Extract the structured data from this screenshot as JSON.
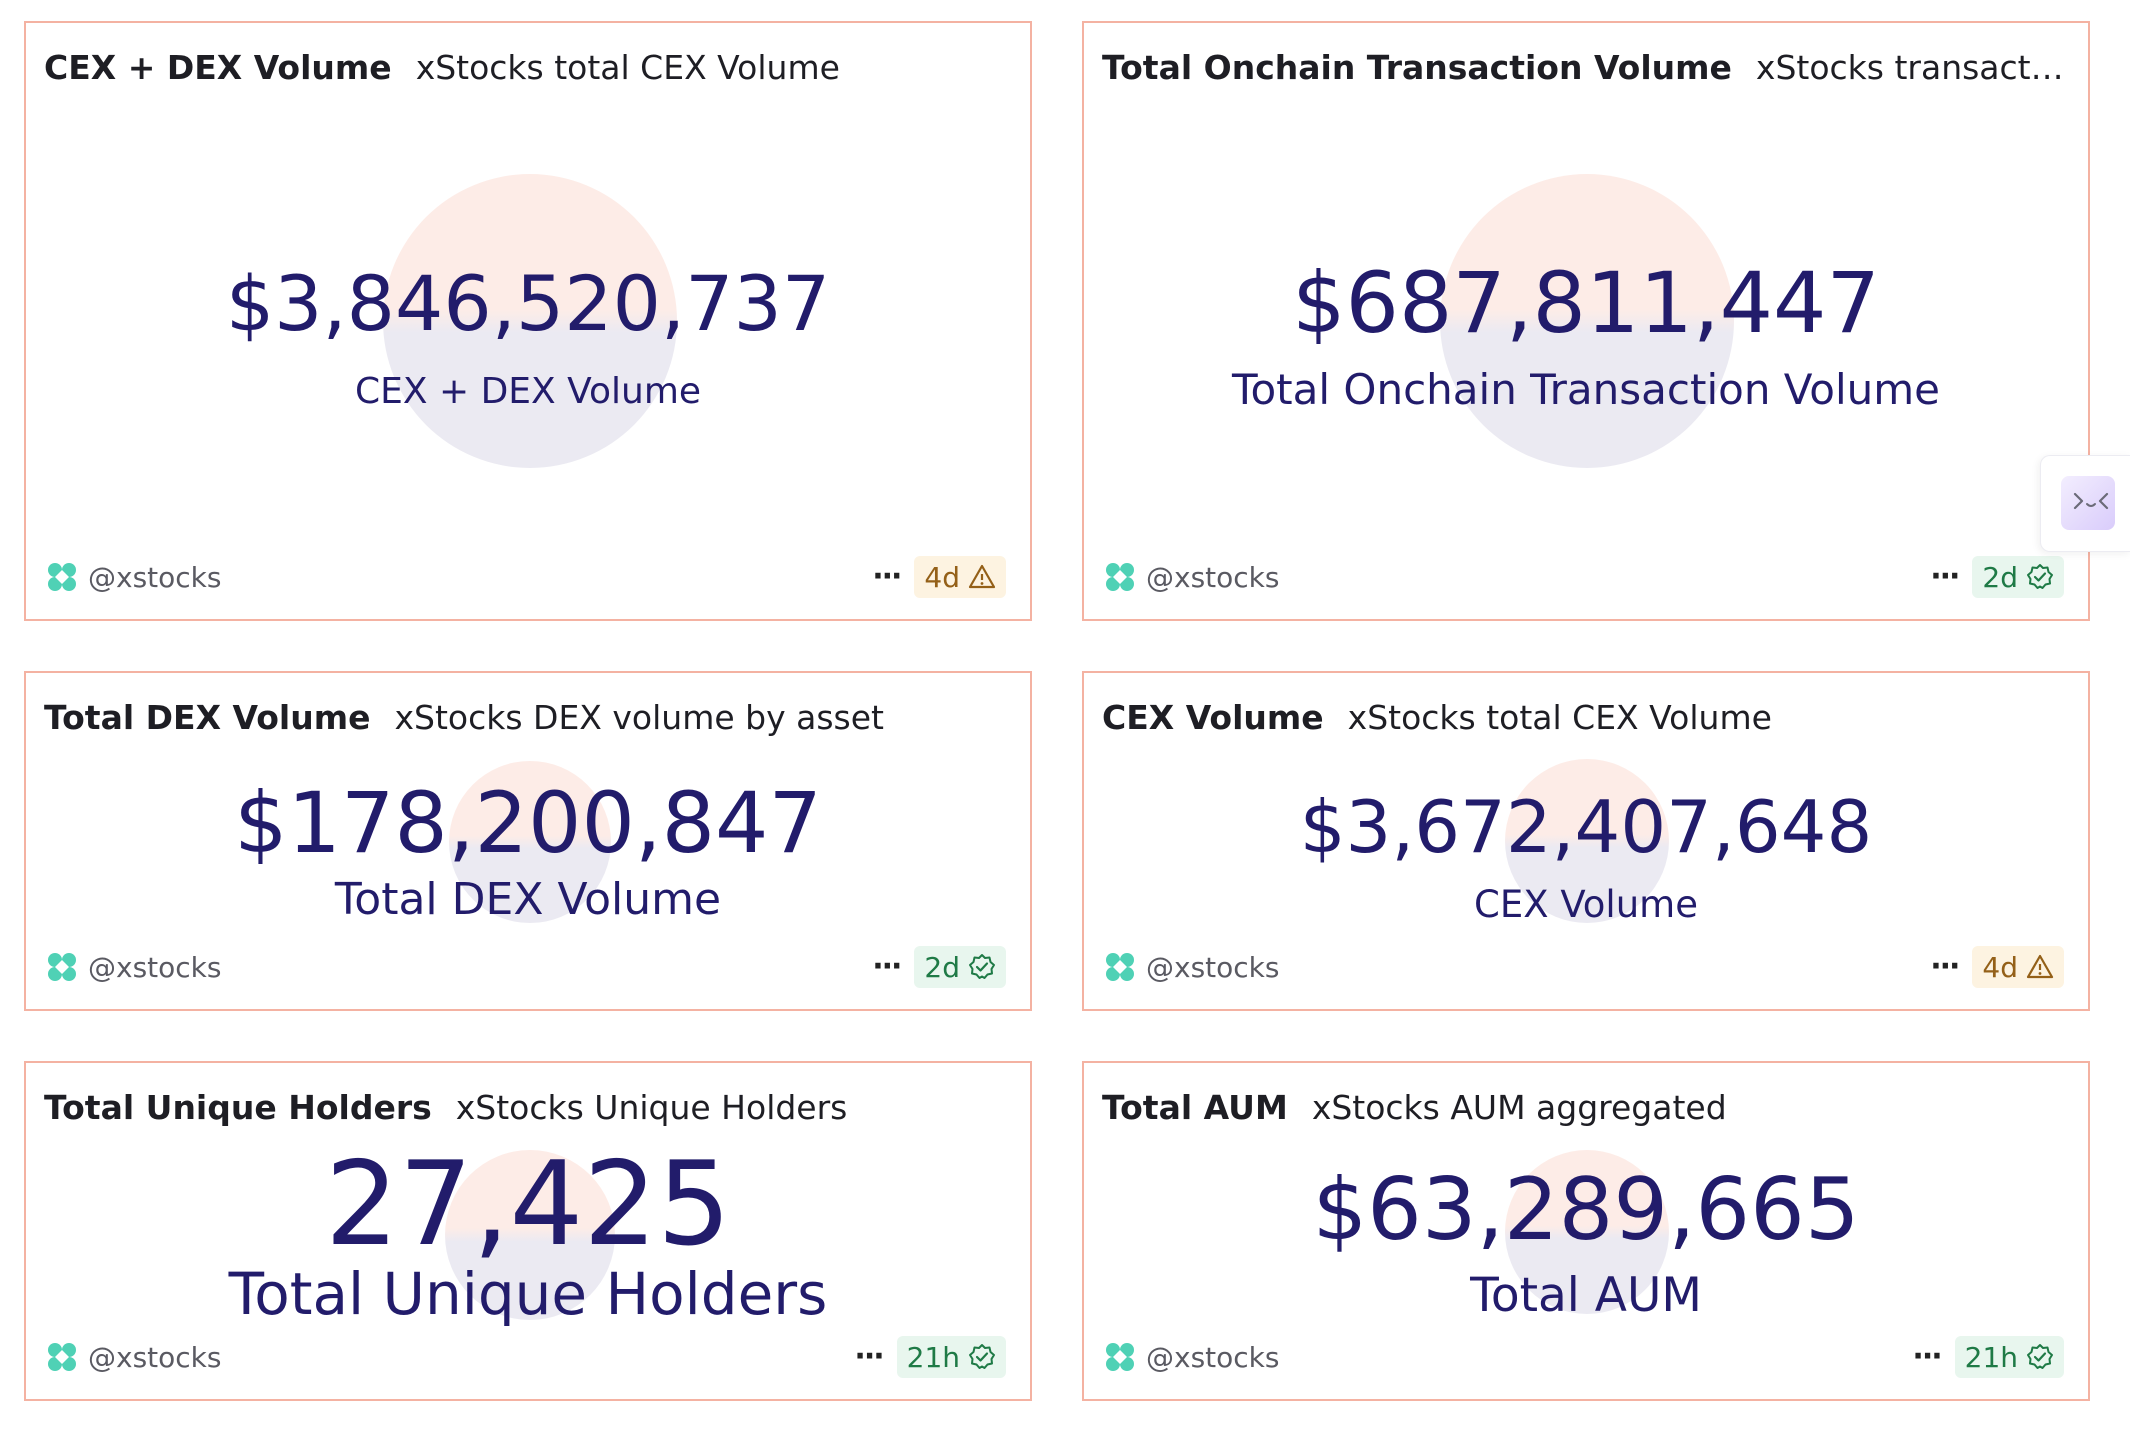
{
  "cards": [
    {
      "title": "CEX + DEX Volume",
      "subtitle": "xStocks total CEX Volume",
      "value": "$3,846,520,737",
      "label": "CEX + DEX Volume",
      "author": "@xstocks",
      "age": "4d",
      "status": "warning"
    },
    {
      "title": "Total Onchain Transaction Volume",
      "subtitle": "xStocks transaction vol...",
      "value": "$687,811,447",
      "label": "Total Onchain Transaction Volume",
      "author": "@xstocks",
      "age": "2d",
      "status": "ok"
    },
    {
      "title": "Total DEX Volume",
      "subtitle": "xStocks DEX volume by asset",
      "value": "$178,200,847",
      "label": "Total DEX Volume",
      "author": "@xstocks",
      "age": "2d",
      "status": "ok"
    },
    {
      "title": "CEX Volume",
      "subtitle": "xStocks total CEX Volume",
      "value": "$3,672,407,648",
      "label": "CEX Volume",
      "author": "@xstocks",
      "age": "4d",
      "status": "warning"
    },
    {
      "title": "Total Unique Holders",
      "subtitle": "xStocks Unique Holders",
      "value": "27,425",
      "label": "Total Unique Holders",
      "author": "@xstocks",
      "age": "21h",
      "status": "ok"
    },
    {
      "title": "Total AUM",
      "subtitle": "xStocks AUM aggregated",
      "value": "$63,289,665",
      "label": "Total AUM",
      "author": "@xstocks",
      "age": "21h",
      "status": "ok"
    }
  ],
  "more_label": "···",
  "colors": {
    "card_border": "#f4b2a2",
    "metric": "#221c6b",
    "ok": "#1f7a46",
    "warning": "#946018",
    "logo": "#4fd1b5"
  }
}
